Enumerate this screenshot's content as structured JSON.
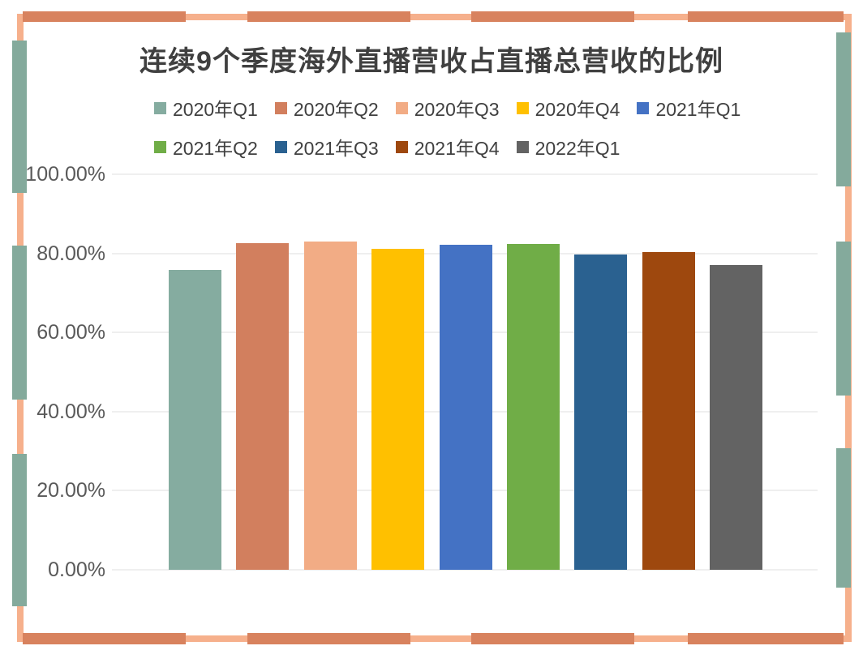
{
  "palette": {
    "background": "#FFFFFF",
    "frame_light": "#F6B08C",
    "frame_dark": "#D8825E",
    "frame_teal": "#84AA9C",
    "title_color": "#404040",
    "legend_text_color": "#404040",
    "tick_text_color": "#595959",
    "gridline_color": "#EFEFEF"
  },
  "chart_data": {
    "type": "bar",
    "title": "连续9个季度海外直播营收占直播总营收的比例",
    "unit": "percent",
    "categories": [
      "2020年Q1",
      "2020年Q2",
      "2020年Q3",
      "2020年Q4",
      "2021年Q1",
      "2021年Q2",
      "2021年Q3",
      "2021年Q4",
      "2022年Q1"
    ],
    "series": [
      {
        "name": "2020年Q1",
        "value": 75.9,
        "color": "#85ACA0"
      },
      {
        "name": "2020年Q2",
        "value": 82.5,
        "color": "#D27F5E"
      },
      {
        "name": "2020年Q3",
        "value": 82.9,
        "color": "#F2AC85"
      },
      {
        "name": "2020年Q4",
        "value": 81.2,
        "color": "#FFC000"
      },
      {
        "name": "2021年Q1",
        "value": 82.1,
        "color": "#4472C4"
      },
      {
        "name": "2021年Q2",
        "value": 82.3,
        "color": "#70AD47"
      },
      {
        "name": "2021年Q3",
        "value": 79.8,
        "color": "#2A6190"
      },
      {
        "name": "2021年Q4",
        "value": 80.4,
        "color": "#9E480E"
      },
      {
        "name": "2022年Q1",
        "value": 77.0,
        "color": "#636363"
      }
    ],
    "ylim": [
      0,
      100
    ],
    "y_ticks": [
      "100.00%",
      "80.00%",
      "60.00%",
      "40.00%",
      "20.00%",
      "0.00%"
    ],
    "grid": true,
    "xlabel": "",
    "ylabel": "",
    "legend_position": "top",
    "legend_rows": [
      5,
      4
    ]
  }
}
